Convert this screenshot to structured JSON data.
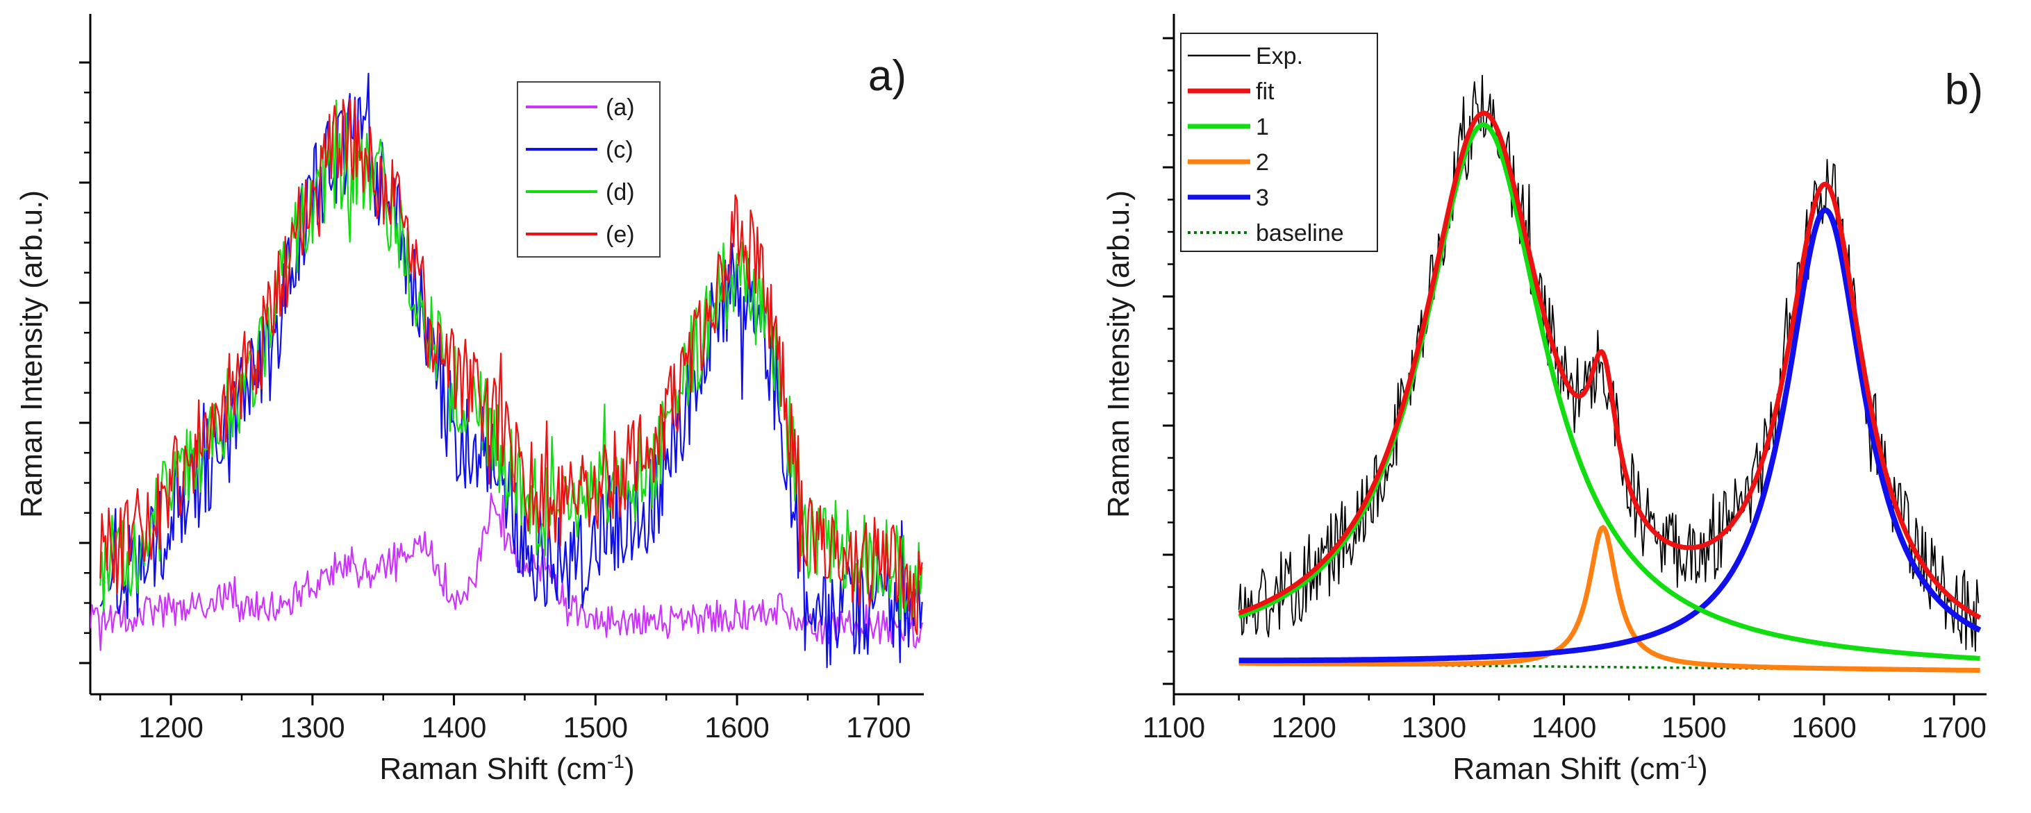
{
  "colors": {
    "axis": "#000000",
    "magenta": "#cc33ff",
    "blue": "#1010ee",
    "green": "#11dd11",
    "red": "#ee1111",
    "black": "#000000",
    "orange": "#ff8010",
    "darkgreen": "#007700"
  },
  "chart_data": [
    {
      "type": "line",
      "panel_label": "a)",
      "title": "",
      "xlabel": "Raman Shift (cm",
      "xlabel_sup": "-1",
      "xlabel_close": ")",
      "ylabel": "Raman Intensity (arb.u.)",
      "xlim": [
        1143,
        1732
      ],
      "ylim": [
        0,
        1
      ],
      "x_ticks": [
        1200,
        1300,
        1400,
        1500,
        1600,
        1700
      ],
      "x_tick_labels": [
        "1200",
        "1300",
        "1400",
        "1500",
        "1600",
        "1700"
      ],
      "y_tick_labels_shown": false,
      "legend": {
        "position": "top-right",
        "entries": [
          "(a)",
          "(c)",
          "(d)",
          "(e)"
        ]
      },
      "series": [
        {
          "name": "(a)",
          "color_key": "magenta",
          "style": "solid",
          "x_range": [
            1143,
            1732
          ],
          "noise": 0.028,
          "envelope": [
            [
              1150,
              0.07
            ],
            [
              1170,
              0.08
            ],
            [
              1200,
              0.09
            ],
            [
              1230,
              0.095
            ],
            [
              1240,
              0.12
            ],
            [
              1250,
              0.09
            ],
            [
              1280,
              0.1
            ],
            [
              1300,
              0.13
            ],
            [
              1320,
              0.16
            ],
            [
              1340,
              0.15
            ],
            [
              1360,
              0.17
            ],
            [
              1375,
              0.2
            ],
            [
              1385,
              0.18
            ],
            [
              1400,
              0.1
            ],
            [
              1415,
              0.14
            ],
            [
              1428,
              0.28
            ],
            [
              1440,
              0.18
            ],
            [
              1455,
              0.17
            ],
            [
              1465,
              0.16
            ],
            [
              1480,
              0.09
            ],
            [
              1500,
              0.07
            ],
            [
              1550,
              0.07
            ],
            [
              1600,
              0.08
            ],
            [
              1630,
              0.09
            ],
            [
              1650,
              0.06
            ],
            [
              1700,
              0.06
            ],
            [
              1732,
              0.05
            ]
          ]
        },
        {
          "name": "(c)",
          "color_key": "blue",
          "style": "solid",
          "x_range": [
            1150,
            1732
          ],
          "noise": 0.085,
          "envelope": [
            [
              1150,
              0.13
            ],
            [
              1180,
              0.16
            ],
            [
              1200,
              0.24
            ],
            [
              1240,
              0.38
            ],
            [
              1270,
              0.52
            ],
            [
              1290,
              0.7
            ],
            [
              1310,
              0.83
            ],
            [
              1325,
              0.87
            ],
            [
              1340,
              0.85
            ],
            [
              1360,
              0.74
            ],
            [
              1380,
              0.55
            ],
            [
              1400,
              0.38
            ],
            [
              1420,
              0.37
            ],
            [
              1430,
              0.34
            ],
            [
              1450,
              0.2
            ],
            [
              1470,
              0.16
            ],
            [
              1490,
              0.17
            ],
            [
              1510,
              0.23
            ],
            [
              1540,
              0.27
            ],
            [
              1560,
              0.4
            ],
            [
              1580,
              0.54
            ],
            [
              1600,
              0.66
            ],
            [
              1620,
              0.55
            ],
            [
              1635,
              0.36
            ],
            [
              1650,
              0.08
            ],
            [
              1660,
              0.07
            ],
            [
              1680,
              0.1
            ],
            [
              1700,
              0.1
            ],
            [
              1732,
              0.05
            ]
          ]
        },
        {
          "name": "(d)",
          "color_key": "green",
          "style": "solid",
          "x_range": [
            1150,
            1732
          ],
          "noise": 0.08,
          "envelope": [
            [
              1150,
              0.16
            ],
            [
              1180,
              0.2
            ],
            [
              1200,
              0.28
            ],
            [
              1240,
              0.42
            ],
            [
              1270,
              0.55
            ],
            [
              1290,
              0.72
            ],
            [
              1310,
              0.82
            ],
            [
              1325,
              0.84
            ],
            [
              1340,
              0.83
            ],
            [
              1360,
              0.72
            ],
            [
              1380,
              0.56
            ],
            [
              1400,
              0.45
            ],
            [
              1420,
              0.42
            ],
            [
              1440,
              0.32
            ],
            [
              1460,
              0.25
            ],
            [
              1480,
              0.25
            ],
            [
              1510,
              0.29
            ],
            [
              1540,
              0.33
            ],
            [
              1560,
              0.45
            ],
            [
              1580,
              0.58
            ],
            [
              1600,
              0.66
            ],
            [
              1620,
              0.58
            ],
            [
              1635,
              0.4
            ],
            [
              1650,
              0.22
            ],
            [
              1680,
              0.18
            ],
            [
              1700,
              0.18
            ],
            [
              1732,
              0.12
            ]
          ]
        },
        {
          "name": "(e)",
          "color_key": "red",
          "style": "solid",
          "x_range": [
            1150,
            1732
          ],
          "noise": 0.08,
          "envelope": [
            [
              1150,
              0.17
            ],
            [
              1180,
              0.22
            ],
            [
              1200,
              0.3
            ],
            [
              1240,
              0.44
            ],
            [
              1270,
              0.56
            ],
            [
              1290,
              0.74
            ],
            [
              1310,
              0.85
            ],
            [
              1325,
              0.87
            ],
            [
              1340,
              0.86
            ],
            [
              1360,
              0.75
            ],
            [
              1380,
              0.58
            ],
            [
              1400,
              0.47
            ],
            [
              1420,
              0.45
            ],
            [
              1440,
              0.34
            ],
            [
              1460,
              0.27
            ],
            [
              1480,
              0.27
            ],
            [
              1510,
              0.31
            ],
            [
              1540,
              0.35
            ],
            [
              1560,
              0.47
            ],
            [
              1580,
              0.6
            ],
            [
              1600,
              0.73
            ],
            [
              1620,
              0.62
            ],
            [
              1635,
              0.42
            ],
            [
              1650,
              0.22
            ],
            [
              1680,
              0.18
            ],
            [
              1700,
              0.17
            ],
            [
              1732,
              0.12
            ]
          ]
        }
      ]
    },
    {
      "type": "line",
      "panel_label": "b)",
      "title": "",
      "xlabel": "Raman Shift (cm",
      "xlabel_sup": "-1",
      "xlabel_close": ")",
      "ylabel": "Raman Intensity (arb.u.)",
      "xlim": [
        1100,
        1725
      ],
      "ylim": [
        0,
        1
      ],
      "x_ticks": [
        1100,
        1200,
        1300,
        1400,
        1500,
        1600,
        1700
      ],
      "x_tick_labels": [
        "1100",
        "1200",
        "1300",
        "1400",
        "1500",
        "1600",
        "1700"
      ],
      "y_tick_labels_shown": false,
      "legend": {
        "position": "top-left",
        "entries": [
          "Exp.",
          "fit",
          "1",
          "2",
          "3",
          "baseline"
        ]
      },
      "peaks": [
        {
          "name": "1",
          "center": 1338,
          "width": 58,
          "amp": 0.838
        },
        {
          "name": "2",
          "center": 1430,
          "width": 13,
          "amp": 0.216
        },
        {
          "name": "3",
          "center": 1601,
          "width": 37,
          "amp": 0.711
        }
      ],
      "baseline": {
        "x": [
          1150,
          1720
        ],
        "y": [
          0.0315,
          0.0205
        ]
      },
      "exp_noise": 0.065,
      "series": [
        {
          "name": "Exp.",
          "color_key": "black",
          "style": "thin",
          "x_range": [
            1150,
            1720
          ]
        },
        {
          "name": "fit",
          "color_key": "red",
          "style": "thick",
          "x_range": [
            1150,
            1720
          ]
        },
        {
          "name": "1",
          "color_key": "green",
          "style": "thick",
          "x_range": [
            1150,
            1720
          ]
        },
        {
          "name": "2",
          "color_key": "orange",
          "style": "thick",
          "x_range": [
            1150,
            1720
          ]
        },
        {
          "name": "3",
          "color_key": "blue",
          "style": "thick",
          "x_range": [
            1150,
            1720
          ]
        },
        {
          "name": "baseline",
          "color_key": "darkgreen",
          "style": "dotted",
          "x_range": [
            1150,
            1720
          ]
        }
      ]
    }
  ]
}
